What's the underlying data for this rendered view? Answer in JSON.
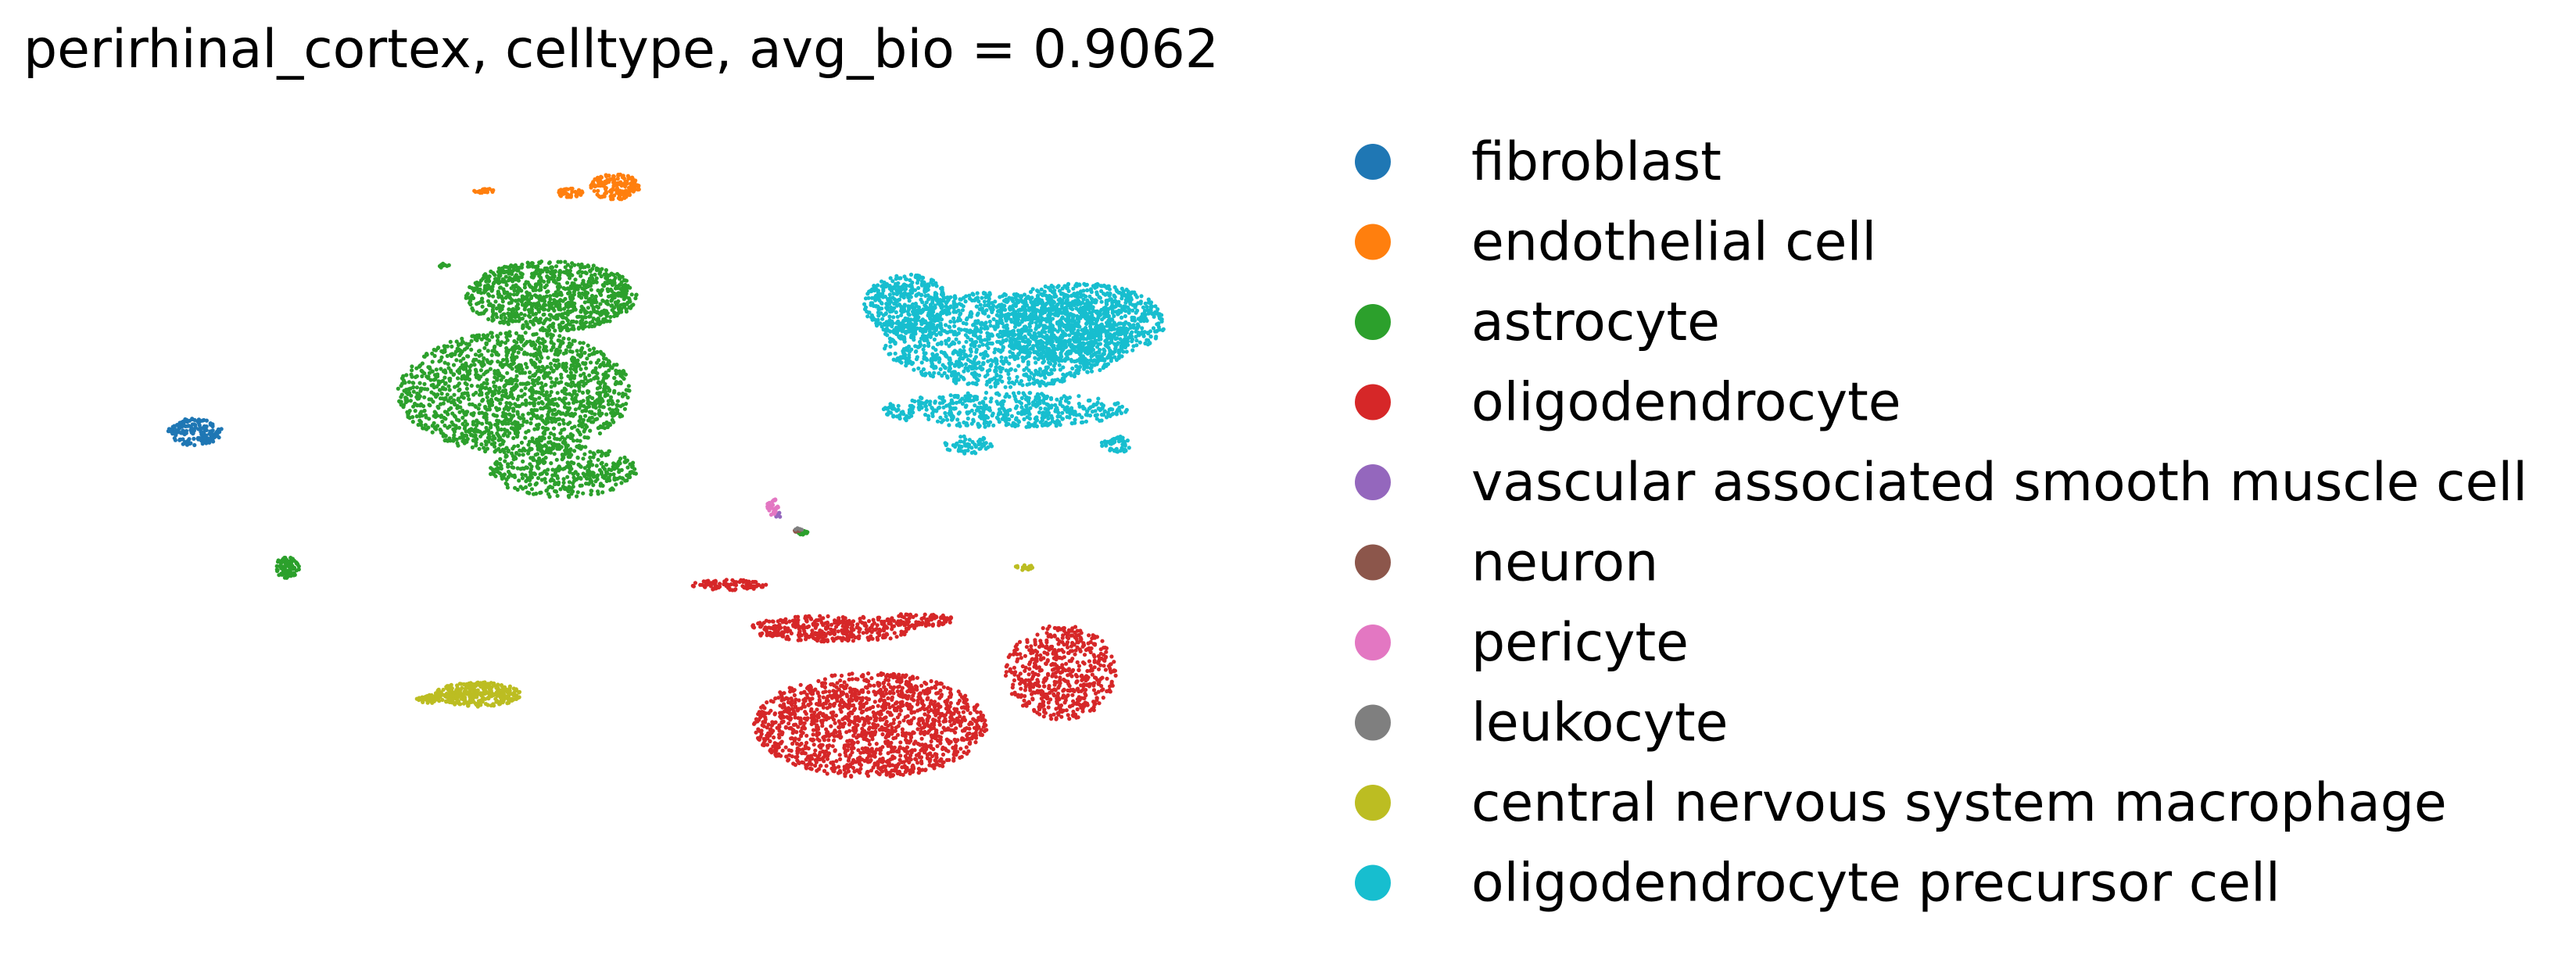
{
  "chart_data": {
    "type": "scatter",
    "title": "perirhinal_cortex, celltype, avg_bio = 0.9062",
    "xlabel": "",
    "ylabel": "",
    "axes_visible": false,
    "grid": false,
    "legend_position": "right",
    "series": [
      {
        "name": "fibroblast",
        "color": "#1f77b4",
        "clusters": [
          {
            "cx": 1.4,
            "cy": 6.05,
            "rx": 0.22,
            "ry": 0.16,
            "n": 160
          }
        ]
      },
      {
        "name": "endothelial cell",
        "color": "#ff7f0e",
        "clusters": [
          {
            "cx": 4.82,
            "cy": 8.85,
            "rx": 0.2,
            "ry": 0.15,
            "n": 150
          },
          {
            "cx": 4.45,
            "cy": 8.78,
            "rx": 0.11,
            "ry": 0.05,
            "n": 40
          },
          {
            "cx": 3.75,
            "cy": 8.8,
            "rx": 0.1,
            "ry": 0.03,
            "n": 25
          }
        ]
      },
      {
        "name": "astrocyte",
        "color": "#2ca02c",
        "clusters": [
          {
            "cx": 4.3,
            "cy": 7.6,
            "rx": 0.7,
            "ry": 0.4,
            "n": 900
          },
          {
            "cx": 4.0,
            "cy": 6.5,
            "rx": 0.95,
            "ry": 0.7,
            "n": 1500
          },
          {
            "cx": 4.4,
            "cy": 5.6,
            "rx": 0.6,
            "ry": 0.3,
            "n": 400
          },
          {
            "cx": 2.15,
            "cy": 4.5,
            "rx": 0.1,
            "ry": 0.12,
            "n": 80
          },
          {
            "cx": 6.35,
            "cy": 4.9,
            "rx": 0.06,
            "ry": 0.03,
            "n": 15
          },
          {
            "cx": 3.42,
            "cy": 7.95,
            "rx": 0.06,
            "ry": 0.03,
            "n": 10
          }
        ]
      },
      {
        "name": "oligodendrocyte",
        "color": "#d62728",
        "clusters": [
          {
            "cx": 6.9,
            "cy": 2.7,
            "rx": 0.95,
            "ry": 0.6,
            "n": 1500
          },
          {
            "cx": 6.6,
            "cy": 3.8,
            "rx": 0.7,
            "ry": 0.15,
            "n": 350
          },
          {
            "cx": 5.75,
            "cy": 4.3,
            "rx": 0.3,
            "ry": 0.06,
            "n": 90
          },
          {
            "cx": 8.45,
            "cy": 3.3,
            "rx": 0.45,
            "ry": 0.55,
            "n": 550
          },
          {
            "cx": 7.3,
            "cy": 3.9,
            "rx": 0.28,
            "ry": 0.08,
            "n": 80
          }
        ]
      },
      {
        "name": "vascular associated smooth muscle cell",
        "color": "#9467bd",
        "clusters": [
          {
            "cx": 6.15,
            "cy": 5.1,
            "rx": 0.03,
            "ry": 0.03,
            "n": 6
          }
        ]
      },
      {
        "name": "neuron",
        "color": "#8c564b",
        "clusters": [
          {
            "cx": 6.3,
            "cy": 4.92,
            "rx": 0.03,
            "ry": 0.02,
            "n": 5
          }
        ]
      },
      {
        "name": "pericyte",
        "color": "#e377c2",
        "clusters": [
          {
            "cx": 6.1,
            "cy": 5.2,
            "rx": 0.05,
            "ry": 0.1,
            "n": 30
          }
        ]
      },
      {
        "name": "leukocyte",
        "color": "#7f7f7f",
        "clusters": [
          {
            "cx": 6.32,
            "cy": 4.93,
            "rx": 0.03,
            "ry": 0.02,
            "n": 5
          }
        ]
      },
      {
        "name": "central nervous system macrophage",
        "color": "#bcbd22",
        "clusters": [
          {
            "cx": 3.7,
            "cy": 3.05,
            "rx": 0.35,
            "ry": 0.14,
            "n": 330
          },
          {
            "cx": 3.3,
            "cy": 3.0,
            "rx": 0.1,
            "ry": 0.05,
            "n": 40
          },
          {
            "cx": 8.15,
            "cy": 4.5,
            "rx": 0.08,
            "ry": 0.03,
            "n": 15
          }
        ]
      },
      {
        "name": "oligodendrocyte precursor cell",
        "color": "#17becf",
        "clusters": [
          {
            "cx": 8.0,
            "cy": 7.1,
            "rx": 1.0,
            "ry": 0.55,
            "n": 1400
          },
          {
            "cx": 8.6,
            "cy": 7.3,
            "rx": 0.7,
            "ry": 0.45,
            "n": 900
          },
          {
            "cx": 7.2,
            "cy": 7.5,
            "rx": 0.35,
            "ry": 0.35,
            "n": 400
          },
          {
            "cx": 8.0,
            "cy": 6.3,
            "rx": 1.0,
            "ry": 0.2,
            "n": 500
          },
          {
            "cx": 7.7,
            "cy": 5.9,
            "rx": 0.2,
            "ry": 0.1,
            "n": 60
          },
          {
            "cx": 8.9,
            "cy": 5.9,
            "rx": 0.12,
            "ry": 0.1,
            "n": 50
          }
        ]
      }
    ]
  }
}
